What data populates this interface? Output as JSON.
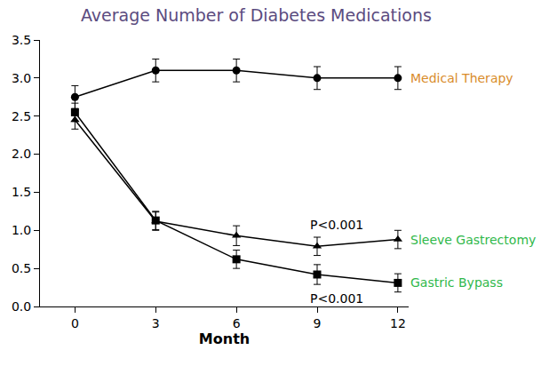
{
  "chart_data": {
    "type": "line",
    "title": "Average Number of Diabetes Medications",
    "x_label": "Month",
    "x": [
      0,
      3,
      6,
      9,
      12
    ],
    "series": [
      {
        "name": "Medical Therapy",
        "color": "#000000",
        "marker": "circle",
        "values": [
          2.75,
          3.1,
          3.1,
          3.0,
          3.0
        ],
        "errors": [
          0.15,
          0.15,
          0.15,
          0.15,
          0.15
        ]
      },
      {
        "name": "Sleeve Gastrectomy",
        "color": "#000000",
        "marker": "triangle",
        "values": [
          2.45,
          1.12,
          0.93,
          0.79,
          0.88
        ],
        "errors": [
          0.12,
          0.12,
          0.13,
          0.12,
          0.12
        ]
      },
      {
        "name": "Gastric Bypass",
        "color": "#000000",
        "marker": "square",
        "values": [
          2.55,
          1.13,
          0.62,
          0.42,
          0.31
        ],
        "errors": [
          0.12,
          0.12,
          0.12,
          0.13,
          0.12
        ]
      }
    ],
    "annotations": [
      "P<0.001",
      "P<0.001"
    ],
    "xlim": [
      -1.3,
      12.4
    ],
    "xticks": [
      0,
      3,
      6,
      9,
      12
    ],
    "ylim": [
      0,
      3.5
    ],
    "yticks": [
      {
        "value": 0,
        "label": "0.0"
      },
      0.5,
      {
        "value": 1,
        "label": "1.0"
      },
      1.5,
      {
        "value": 2,
        "label": "2.0"
      },
      2.5,
      {
        "value": 3,
        "label": "3.0"
      },
      3.5
    ],
    "grid": false
  }
}
